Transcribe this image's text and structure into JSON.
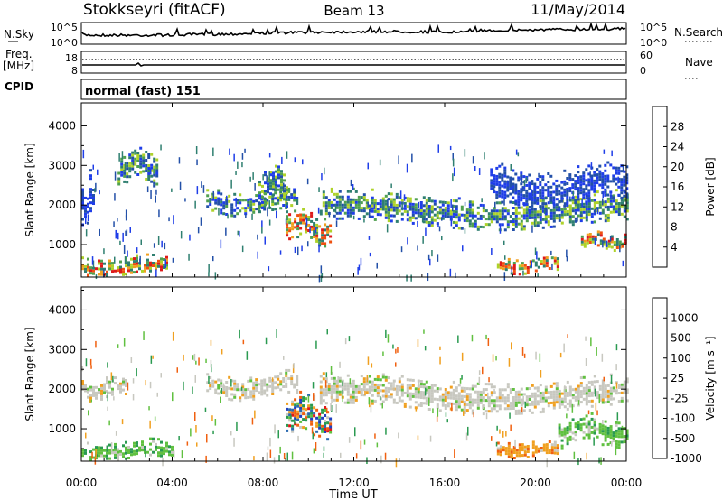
{
  "header": {
    "station": "Stokkseyri (fitACF)",
    "beam": "Beam 13",
    "date": "11/May/2014"
  },
  "nsky_panel": {
    "left_label": "N.Sky",
    "left_ticks": [
      "10^5",
      "10^0"
    ],
    "right_ticks": [
      "10^5",
      "10^0"
    ],
    "right_label": "N.Search"
  },
  "freq_panel": {
    "left_label_1": "Freq.",
    "left_label_2": "[MHz]",
    "left_ticks": [
      "18",
      "8"
    ],
    "right_ticks": [
      "60",
      "0"
    ],
    "right_label": "Nave"
  },
  "cpid": {
    "label": "CPID",
    "value": "normal (fast) 151"
  },
  "chart_data": [
    {
      "type": "heatmap",
      "name": "power",
      "ylabel": "Slant Range [km]",
      "yticks": [
        "1000",
        "2000",
        "3000",
        "4000"
      ],
      "ytick_values": [
        1000,
        2000,
        3000,
        4000
      ],
      "ylim": [
        180,
        4580
      ],
      "xlim_hours": [
        0,
        24
      ],
      "xticks": [
        "00:00",
        "04:00",
        "08:00",
        "12:00",
        "16:00",
        "20:00",
        "00:00"
      ],
      "xtick_hours": [
        0,
        4,
        8,
        12,
        16,
        20,
        24
      ],
      "colorbar": {
        "label": "Power [dB]",
        "tick_labels": [
          "4",
          "8",
          "12",
          "16",
          "20",
          "24",
          "28"
        ],
        "colors": [
          "#1f3ee8",
          "#2350a8",
          "#2f7f70",
          "#50a050",
          "#aed22a",
          "#f0a020",
          "#ee5010",
          "#dd1a1a"
        ]
      },
      "features": [
        {
          "hours": [
            0.0,
            3.8
          ],
          "range_km": [
            250,
            700
          ],
          "level": "high"
        },
        {
          "hours": [
            0.0,
            0.5
          ],
          "range_km": [
            1500,
            2700
          ],
          "level": "low"
        },
        {
          "hours": [
            1.6,
            3.3
          ],
          "range_km": [
            2550,
            3400
          ],
          "level": "medium"
        },
        {
          "hours": [
            5.5,
            9.5
          ],
          "range_km": [
            1800,
            2400
          ],
          "level": "medium"
        },
        {
          "hours": [
            9.0,
            11.0
          ],
          "range_km": [
            1100,
            1800
          ],
          "level": "high"
        },
        {
          "hours": [
            7.8,
            9.0
          ],
          "range_km": [
            2000,
            3000
          ],
          "level": "medium"
        },
        {
          "hours": [
            10.5,
            24.0
          ],
          "range_km": [
            1500,
            2300
          ],
          "level": "medium"
        },
        {
          "hours": [
            18.3,
            21.0
          ],
          "range_km": [
            300,
            700
          ],
          "level": "high"
        },
        {
          "hours": [
            22.0,
            24.0
          ],
          "range_km": [
            900,
            1300
          ],
          "level": "high"
        },
        {
          "hours": [
            18.0,
            24.0
          ],
          "range_km": [
            2000,
            3000
          ],
          "level": "low"
        }
      ]
    },
    {
      "type": "heatmap",
      "name": "velocity",
      "ylabel": "Slant Range [km]",
      "yticks": [
        "1000",
        "2000",
        "3000",
        "4000"
      ],
      "ytick_values": [
        1000,
        2000,
        3000,
        4000
      ],
      "ylim": [
        180,
        4580
      ],
      "xlim_hours": [
        0,
        24
      ],
      "xticks": [
        "00:00",
        "04:00",
        "08:00",
        "12:00",
        "16:00",
        "20:00",
        "00:00"
      ],
      "xtick_hours": [
        0,
        4,
        8,
        12,
        16,
        20,
        24
      ],
      "xlabel": "Time UT",
      "colorbar": {
        "label": "Velocity [m s⁻¹]",
        "tick_labels": [
          "1000",
          "500",
          "100",
          "25",
          "-25",
          "-100",
          "-500",
          "-1000"
        ],
        "colors": [
          "#2040c0",
          "#2a6ab0",
          "#2a9a50",
          "#60c040",
          "#c8c8c0",
          "#f0a020",
          "#f06010",
          "#e01818"
        ]
      },
      "features": [
        {
          "hours": [
            0.0,
            4.0
          ],
          "range_km": [
            250,
            700
          ],
          "class": "toward-green"
        },
        {
          "hours": [
            0.0,
            2.0
          ],
          "range_km": [
            1800,
            2300
          ],
          "class": "ground-gray"
        },
        {
          "hours": [
            5.5,
            9.5
          ],
          "range_km": [
            1800,
            2400
          ],
          "class": "ground-gray"
        },
        {
          "hours": [
            9.0,
            11.0
          ],
          "range_km": [
            900,
            1800
          ],
          "class": "mixed"
        },
        {
          "hours": [
            10.5,
            24.0
          ],
          "range_km": [
            1500,
            2300
          ],
          "class": "ground-gray"
        },
        {
          "hours": [
            18.3,
            21.0
          ],
          "range_km": [
            300,
            700
          ],
          "class": "away-orange"
        },
        {
          "hours": [
            21.0,
            24.0
          ],
          "range_km": [
            600,
            1300
          ],
          "class": "toward-green"
        }
      ]
    }
  ]
}
